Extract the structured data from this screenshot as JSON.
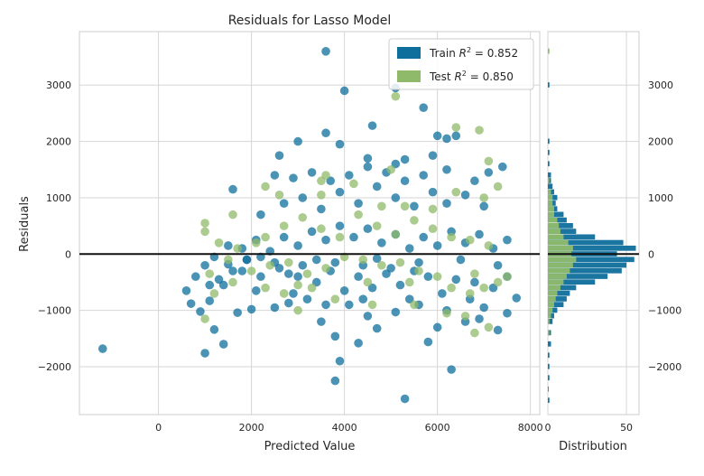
{
  "chart_data": {
    "type": "scatter",
    "title": "Residuals for Lasso Model",
    "xlabel": "Predicted Value",
    "ylabel": "Residuals",
    "xlim": [
      -1700,
      8200
    ],
    "ylim": [
      -2850,
      3950
    ],
    "xticks": [
      0,
      2000,
      4000,
      6000,
      8000
    ],
    "yticks": [
      -2000,
      -1000,
      0,
      1000,
      2000,
      3000
    ],
    "grid": true,
    "legend_position": "top-right",
    "zero_line": 0,
    "colors": {
      "train": "#0e6f9c",
      "test": "#8fba6a"
    },
    "legend": [
      {
        "label_prefix": "Train ",
        "r2_label": "R",
        "sup": "2",
        "label_suffix": " = 0.852"
      },
      {
        "label_prefix": "Test ",
        "r2_label": "R",
        "sup": "2",
        "label_suffix": " = 0.850"
      }
    ],
    "series": [
      {
        "name": "Train R^2 = 0.852",
        "points": [
          [
            -1200,
            -1680
          ],
          [
            600,
            -650
          ],
          [
            700,
            -880
          ],
          [
            900,
            -1020
          ],
          [
            1000,
            -1760
          ],
          [
            1100,
            -830
          ],
          [
            1200,
            -1340
          ],
          [
            1400,
            -1600
          ],
          [
            1700,
            -1040
          ],
          [
            2000,
            -980
          ],
          [
            1500,
            -180
          ],
          [
            1800,
            -300
          ],
          [
            2100,
            -650
          ],
          [
            2500,
            -950
          ],
          [
            2800,
            -870
          ],
          [
            3000,
            -400
          ],
          [
            3200,
            -800
          ],
          [
            3500,
            -1200
          ],
          [
            3800,
            -2250
          ],
          [
            3900,
            -1900
          ],
          [
            4300,
            -1580
          ],
          [
            3800,
            -1460
          ],
          [
            4100,
            -900
          ],
          [
            4500,
            -1100
          ],
          [
            4700,
            -1320
          ],
          [
            5100,
            -1030
          ],
          [
            5300,
            -2570
          ],
          [
            5600,
            -900
          ],
          [
            5800,
            -1560
          ],
          [
            6000,
            -1300
          ],
          [
            6300,
            -2050
          ],
          [
            6600,
            -1200
          ],
          [
            6900,
            -1150
          ],
          [
            7000,
            -950
          ],
          [
            7300,
            -1350
          ],
          [
            7500,
            -1050
          ],
          [
            7700,
            -780
          ],
          [
            7500,
            -400
          ],
          [
            7200,
            -600
          ],
          [
            6800,
            -500
          ],
          [
            6400,
            -450
          ],
          [
            6100,
            -700
          ],
          [
            5800,
            -400
          ],
          [
            5500,
            -300
          ],
          [
            5200,
            -550
          ],
          [
            4900,
            -350
          ],
          [
            4600,
            -600
          ],
          [
            4300,
            -400
          ],
          [
            4000,
            -650
          ],
          [
            3700,
            -300
          ],
          [
            3400,
            -500
          ],
          [
            3100,
            -200
          ],
          [
            2800,
            -350
          ],
          [
            2500,
            -150
          ],
          [
            2200,
            -400
          ],
          [
            1900,
            -100
          ],
          [
            1600,
            -300
          ],
          [
            1300,
            -450
          ],
          [
            1000,
            -200
          ],
          [
            800,
            -400
          ],
          [
            1200,
            -50
          ],
          [
            1500,
            150
          ],
          [
            1800,
            100
          ],
          [
            2100,
            250
          ],
          [
            2400,
            50
          ],
          [
            2700,
            300
          ],
          [
            3000,
            150
          ],
          [
            3300,
            400
          ],
          [
            3600,
            250
          ],
          [
            3900,
            500
          ],
          [
            4200,
            300
          ],
          [
            4500,
            450
          ],
          [
            4800,
            200
          ],
          [
            5100,
            350
          ],
          [
            5400,
            100
          ],
          [
            5700,
            300
          ],
          [
            6000,
            150
          ],
          [
            6300,
            400
          ],
          [
            6600,
            200
          ],
          [
            6900,
            350
          ],
          [
            7200,
            100
          ],
          [
            7500,
            250
          ],
          [
            2200,
            700
          ],
          [
            2700,
            900
          ],
          [
            3100,
            1000
          ],
          [
            3500,
            800
          ],
          [
            3900,
            1100
          ],
          [
            4300,
            900
          ],
          [
            4700,
            1200
          ],
          [
            5100,
            1000
          ],
          [
            5500,
            850
          ],
          [
            5900,
            1100
          ],
          [
            6200,
            900
          ],
          [
            6600,
            1050
          ],
          [
            7000,
            850
          ],
          [
            7100,
            1450
          ],
          [
            7400,
            1550
          ],
          [
            6800,
            1300
          ],
          [
            6200,
            1500
          ],
          [
            5700,
            1400
          ],
          [
            5300,
            1300
          ],
          [
            4900,
            1450
          ],
          [
            4500,
            1550
          ],
          [
            4100,
            1400
          ],
          [
            3700,
            1300
          ],
          [
            3300,
            1450
          ],
          [
            2900,
            1350
          ],
          [
            2500,
            1400
          ],
          [
            1600,
            1150
          ],
          [
            2600,
            1750
          ],
          [
            3000,
            2000
          ],
          [
            3600,
            2150
          ],
          [
            3900,
            1950
          ],
          [
            4500,
            1700
          ],
          [
            5100,
            1600
          ],
          [
            5300,
            1680
          ],
          [
            5900,
            1750
          ],
          [
            6000,
            2100
          ],
          [
            6200,
            2050
          ],
          [
            6400,
            2100
          ],
          [
            5700,
            2600
          ],
          [
            5100,
            2950
          ],
          [
            4600,
            2280
          ],
          [
            4000,
            2900
          ],
          [
            3600,
            3600
          ],
          [
            1900,
            -100
          ],
          [
            2200,
            -50
          ],
          [
            3400,
            -100
          ],
          [
            4700,
            -80
          ],
          [
            5600,
            -150
          ],
          [
            6500,
            -100
          ],
          [
            7300,
            -200
          ],
          [
            4400,
            -200
          ],
          [
            3800,
            -150
          ],
          [
            5000,
            -250
          ],
          [
            2600,
            -250
          ],
          [
            1400,
            -550
          ],
          [
            6700,
            -800
          ],
          [
            6200,
            -1000
          ],
          [
            5400,
            -800
          ],
          [
            4400,
            -800
          ],
          [
            3600,
            -900
          ],
          [
            2900,
            -700
          ],
          [
            1100,
            -550
          ]
        ]
      },
      {
        "name": "Test R^2 = 0.850",
        "points": [
          [
            1000,
            550
          ],
          [
            1000,
            400
          ],
          [
            1300,
            200
          ],
          [
            1100,
            -350
          ],
          [
            1500,
            -100
          ],
          [
            1000,
            -1150
          ],
          [
            2300,
            -600
          ],
          [
            2700,
            -700
          ],
          [
            3000,
            -1000
          ],
          [
            3300,
            -600
          ],
          [
            3800,
            -800
          ],
          [
            4600,
            -900
          ],
          [
            5500,
            -900
          ],
          [
            6200,
            -1050
          ],
          [
            6600,
            -1100
          ],
          [
            6800,
            -1400
          ],
          [
            7100,
            -1300
          ],
          [
            7500,
            -400
          ],
          [
            7300,
            -500
          ],
          [
            7000,
            -600
          ],
          [
            6700,
            -700
          ],
          [
            6300,
            -600
          ],
          [
            6000,
            -400
          ],
          [
            5600,
            -300
          ],
          [
            5200,
            -150
          ],
          [
            4800,
            -200
          ],
          [
            4400,
            -100
          ],
          [
            4000,
            -50
          ],
          [
            3600,
            -250
          ],
          [
            3200,
            -350
          ],
          [
            2800,
            -150
          ],
          [
            2400,
            -200
          ],
          [
            2000,
            -300
          ],
          [
            1600,
            -500
          ],
          [
            1200,
            -700
          ],
          [
            2300,
            300
          ],
          [
            2700,
            500
          ],
          [
            3100,
            650
          ],
          [
            3500,
            450
          ],
          [
            3900,
            300
          ],
          [
            4300,
            700
          ],
          [
            4700,
            500
          ],
          [
            5100,
            350
          ],
          [
            5500,
            600
          ],
          [
            5900,
            450
          ],
          [
            6300,
            300
          ],
          [
            6700,
            250
          ],
          [
            7100,
            150
          ],
          [
            1600,
            700
          ],
          [
            2300,
            1200
          ],
          [
            2600,
            1050
          ],
          [
            3500,
            1050
          ],
          [
            3600,
            1400
          ],
          [
            4200,
            1250
          ],
          [
            4800,
            850
          ],
          [
            5300,
            850
          ],
          [
            5900,
            800
          ],
          [
            6400,
            1100
          ],
          [
            7000,
            1000
          ],
          [
            7300,
            1200
          ],
          [
            7100,
            1650
          ],
          [
            6900,
            2200
          ],
          [
            6400,
            2250
          ],
          [
            5100,
            2800
          ],
          [
            5000,
            1500
          ],
          [
            3500,
            1300
          ],
          [
            2100,
            200
          ],
          [
            1700,
            100
          ],
          [
            4500,
            -500
          ],
          [
            5400,
            -500
          ],
          [
            3000,
            -550
          ],
          [
            6800,
            -350
          ]
        ]
      }
    ],
    "distribution": {
      "xlabel": "Distribution",
      "xlim": [
        0,
        58
      ],
      "xticks": [
        0,
        50
      ],
      "bin_width": 100,
      "train": [
        [
          -2600,
          1
        ],
        [
          -2400,
          0
        ],
        [
          -2200,
          1
        ],
        [
          -2000,
          1
        ],
        [
          -1800,
          1
        ],
        [
          -1600,
          2
        ],
        [
          -1400,
          2
        ],
        [
          -1200,
          3
        ],
        [
          -1100,
          4
        ],
        [
          -1000,
          6
        ],
        [
          -900,
          10
        ],
        [
          -800,
          12
        ],
        [
          -700,
          14
        ],
        [
          -600,
          18
        ],
        [
          -500,
          30
        ],
        [
          -400,
          38
        ],
        [
          -300,
          47
        ],
        [
          -200,
          50
        ],
        [
          -100,
          55
        ],
        [
          0,
          44
        ],
        [
          100,
          56
        ],
        [
          200,
          48
        ],
        [
          300,
          30
        ],
        [
          400,
          18
        ],
        [
          500,
          16
        ],
        [
          600,
          12
        ],
        [
          700,
          10
        ],
        [
          800,
          6
        ],
        [
          900,
          5
        ],
        [
          1000,
          6
        ],
        [
          1100,
          4
        ],
        [
          1200,
          3
        ],
        [
          1300,
          2
        ],
        [
          1400,
          2
        ],
        [
          1600,
          1
        ],
        [
          1800,
          1
        ],
        [
          2000,
          1
        ],
        [
          3000,
          1
        ]
      ],
      "test": [
        [
          -1400,
          1
        ],
        [
          -1200,
          1
        ],
        [
          -1100,
          2
        ],
        [
          -1000,
          3
        ],
        [
          -900,
          4
        ],
        [
          -800,
          5
        ],
        [
          -700,
          6
        ],
        [
          -600,
          8
        ],
        [
          -500,
          10
        ],
        [
          -400,
          12
        ],
        [
          -300,
          14
        ],
        [
          -200,
          16
        ],
        [
          -100,
          18
        ],
        [
          0,
          15
        ],
        [
          100,
          16
        ],
        [
          200,
          13
        ],
        [
          300,
          10
        ],
        [
          400,
          8
        ],
        [
          500,
          7
        ],
        [
          600,
          6
        ],
        [
          700,
          4
        ],
        [
          800,
          4
        ],
        [
          900,
          3
        ],
        [
          1000,
          3
        ],
        [
          1100,
          2
        ],
        [
          1300,
          1
        ],
        [
          3600,
          1
        ]
      ]
    }
  }
}
